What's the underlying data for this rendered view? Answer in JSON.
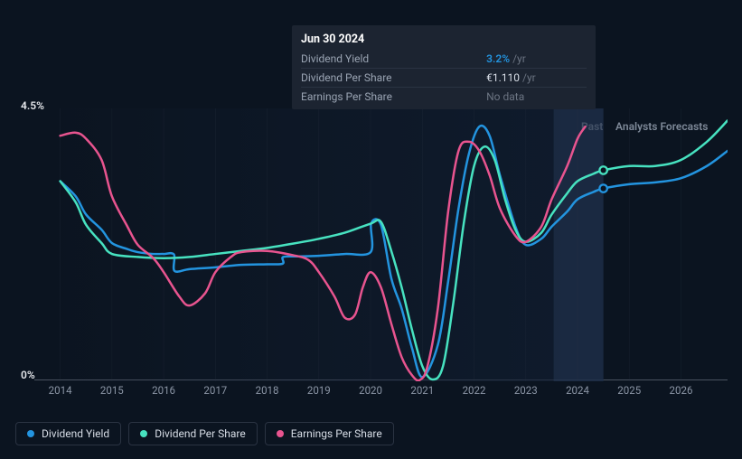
{
  "tooltip": {
    "date": "Jun 30 2024",
    "rows": [
      {
        "label": "Dividend Yield",
        "value": "3.2%",
        "unit": "/yr",
        "highlight": true
      },
      {
        "label": "Dividend Per Share",
        "value": "€1.110",
        "unit": "/yr",
        "highlight": false
      },
      {
        "label": "Earnings Per Share",
        "value": "No data",
        "unit": "",
        "highlight": false,
        "nodata": true
      }
    ]
  },
  "chart": {
    "type": "line",
    "background_color": "#0b1420",
    "grid_color": "#2a3342",
    "baseline_color": "#4a5260",
    "y_axis": {
      "max_label": "4.5%",
      "min_label": "0%",
      "ylim": [
        0,
        4.5
      ]
    },
    "x_axis": {
      "ticks": [
        "2014",
        "2015",
        "2016",
        "2017",
        "2018",
        "2019",
        "2020",
        "2021",
        "2022",
        "2023",
        "2024",
        "2025",
        "2026"
      ],
      "range": [
        2013.5,
        2026.9
      ]
    },
    "regions": {
      "past_label": "Past",
      "past_color": "#ffffff",
      "forecast_label": "Analysts Forecasts",
      "forecast_color": "#7e8998",
      "split_x": 2024.5,
      "forecast_band_fill": "rgba(40,60,90,0.45)",
      "past_gradient_from": "rgba(17,30,50,0.0)",
      "past_gradient_to": "rgba(17,30,50,0.7)"
    },
    "series": [
      {
        "name": "Dividend Yield",
        "color": "#2394df",
        "stroke_width": 2.5,
        "marker_at": [
          2024.5,
          3.18
        ],
        "points": [
          [
            2014.0,
            3.3
          ],
          [
            2014.3,
            3.05
          ],
          [
            2014.5,
            2.75
          ],
          [
            2014.8,
            2.5
          ],
          [
            2015.0,
            2.28
          ],
          [
            2015.3,
            2.18
          ],
          [
            2015.5,
            2.13
          ],
          [
            2015.8,
            2.1
          ],
          [
            2016.0,
            2.1
          ],
          [
            2016.2,
            2.09
          ],
          [
            2016.21,
            1.82
          ],
          [
            2016.5,
            1.85
          ],
          [
            2017.0,
            1.88
          ],
          [
            2017.5,
            1.92
          ],
          [
            2018.0,
            1.93
          ],
          [
            2018.3,
            1.94
          ],
          [
            2018.31,
            2.05
          ],
          [
            2018.6,
            2.06
          ],
          [
            2019.0,
            2.07
          ],
          [
            2019.5,
            2.1
          ],
          [
            2020.0,
            2.13
          ],
          [
            2020.01,
            2.6
          ],
          [
            2020.2,
            2.58
          ],
          [
            2020.4,
            1.7
          ],
          [
            2020.6,
            1.2
          ],
          [
            2020.8,
            0.55
          ],
          [
            2021.0,
            0.07
          ],
          [
            2021.3,
            0.6
          ],
          [
            2021.5,
            1.65
          ],
          [
            2021.7,
            2.85
          ],
          [
            2021.9,
            3.75
          ],
          [
            2022.1,
            4.2
          ],
          [
            2022.3,
            4.05
          ],
          [
            2022.5,
            3.4
          ],
          [
            2022.8,
            2.55
          ],
          [
            2023.0,
            2.25
          ],
          [
            2023.3,
            2.35
          ],
          [
            2023.5,
            2.55
          ],
          [
            2023.8,
            2.8
          ],
          [
            2024.0,
            3.0
          ],
          [
            2024.3,
            3.12
          ],
          [
            2024.5,
            3.18
          ],
          [
            2025.0,
            3.25
          ],
          [
            2025.5,
            3.28
          ],
          [
            2026.0,
            3.35
          ],
          [
            2026.5,
            3.55
          ],
          [
            2026.9,
            3.8
          ]
        ]
      },
      {
        "name": "Dividend Per Share",
        "color": "#47e2c0",
        "stroke_width": 2.5,
        "marker_at": [
          2024.5,
          3.48
        ],
        "points": [
          [
            2014.0,
            3.3
          ],
          [
            2014.3,
            2.95
          ],
          [
            2014.5,
            2.58
          ],
          [
            2014.8,
            2.28
          ],
          [
            2015.0,
            2.1
          ],
          [
            2015.5,
            2.05
          ],
          [
            2016.0,
            2.03
          ],
          [
            2016.5,
            2.05
          ],
          [
            2017.0,
            2.1
          ],
          [
            2017.5,
            2.15
          ],
          [
            2018.0,
            2.2
          ],
          [
            2018.5,
            2.27
          ],
          [
            2019.0,
            2.35
          ],
          [
            2019.5,
            2.45
          ],
          [
            2020.0,
            2.6
          ],
          [
            2020.2,
            2.63
          ],
          [
            2020.4,
            2.15
          ],
          [
            2020.6,
            1.55
          ],
          [
            2020.8,
            0.85
          ],
          [
            2021.0,
            0.25
          ],
          [
            2021.2,
            0.03
          ],
          [
            2021.4,
            0.25
          ],
          [
            2021.6,
            1.3
          ],
          [
            2021.8,
            2.6
          ],
          [
            2022.0,
            3.55
          ],
          [
            2022.2,
            3.87
          ],
          [
            2022.4,
            3.65
          ],
          [
            2022.6,
            3.0
          ],
          [
            2022.8,
            2.5
          ],
          [
            2023.0,
            2.3
          ],
          [
            2023.3,
            2.45
          ],
          [
            2023.5,
            2.75
          ],
          [
            2023.8,
            3.1
          ],
          [
            2024.0,
            3.3
          ],
          [
            2024.3,
            3.42
          ],
          [
            2024.5,
            3.48
          ],
          [
            2025.0,
            3.55
          ],
          [
            2025.5,
            3.55
          ],
          [
            2026.0,
            3.65
          ],
          [
            2026.5,
            3.95
          ],
          [
            2026.9,
            4.3
          ]
        ]
      },
      {
        "name": "Earnings Per Share",
        "color": "#e8548f",
        "stroke_width": 2.5,
        "points": [
          [
            2014.0,
            4.05
          ],
          [
            2014.3,
            4.1
          ],
          [
            2014.5,
            4.0
          ],
          [
            2014.8,
            3.65
          ],
          [
            2015.0,
            3.05
          ],
          [
            2015.3,
            2.55
          ],
          [
            2015.5,
            2.25
          ],
          [
            2015.8,
            2.03
          ],
          [
            2016.0,
            1.8
          ],
          [
            2016.3,
            1.4
          ],
          [
            2016.5,
            1.25
          ],
          [
            2016.8,
            1.45
          ],
          [
            2017.0,
            1.8
          ],
          [
            2017.3,
            2.05
          ],
          [
            2017.5,
            2.13
          ],
          [
            2018.0,
            2.15
          ],
          [
            2018.5,
            2.08
          ],
          [
            2018.8,
            2.0
          ],
          [
            2019.0,
            1.8
          ],
          [
            2019.3,
            1.4
          ],
          [
            2019.5,
            1.05
          ],
          [
            2019.7,
            1.1
          ],
          [
            2019.85,
            1.55
          ],
          [
            2020.0,
            1.8
          ],
          [
            2020.2,
            1.55
          ],
          [
            2020.4,
            0.95
          ],
          [
            2020.6,
            0.4
          ],
          [
            2020.8,
            0.1
          ],
          [
            2020.95,
            0.02
          ],
          [
            2021.1,
            0.25
          ],
          [
            2021.3,
            1.2
          ],
          [
            2021.5,
            2.8
          ],
          [
            2021.7,
            3.8
          ],
          [
            2021.9,
            3.95
          ],
          [
            2022.1,
            3.8
          ],
          [
            2022.3,
            3.4
          ],
          [
            2022.5,
            2.85
          ],
          [
            2022.8,
            2.4
          ],
          [
            2023.0,
            2.3
          ],
          [
            2023.3,
            2.55
          ],
          [
            2023.5,
            3.0
          ],
          [
            2023.8,
            3.55
          ],
          [
            2024.0,
            4.0
          ],
          [
            2024.15,
            4.2
          ]
        ]
      }
    ],
    "legend_items": [
      {
        "label": "Dividend Yield",
        "color": "#2394df"
      },
      {
        "label": "Dividend Per Share",
        "color": "#47e2c0"
      },
      {
        "label": "Earnings Per Share",
        "color": "#e8548f"
      }
    ]
  }
}
